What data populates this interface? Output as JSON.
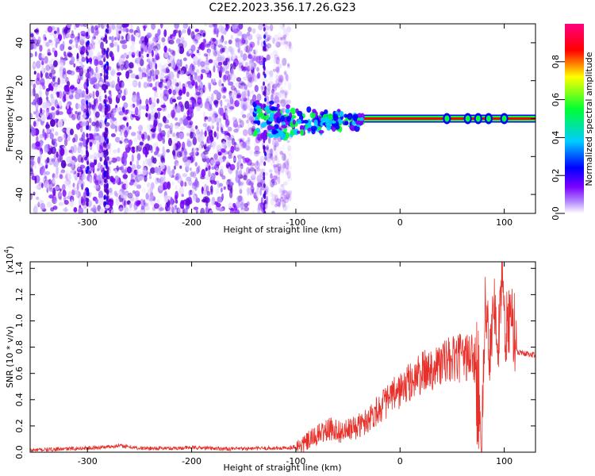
{
  "title": "C2E2.2023.356.17.26.G23",
  "chart_data": [
    {
      "type": "heatmap",
      "title": "C2E2.2023.356.17.26.G23",
      "xlabel": "Height of straight line (km)",
      "ylabel": "Frequency (Hz)",
      "xlim": [
        -355,
        130
      ],
      "ylim": [
        -50,
        50
      ],
      "x_ticks": [
        -300,
        -200,
        -100,
        0,
        100
      ],
      "y_ticks": [
        -40,
        -20,
        0,
        20,
        40
      ],
      "colorbar": {
        "label": "Normalized spectral amplitude",
        "range": [
          0.0,
          1.0
        ],
        "ticks": [
          0.0,
          0.2,
          0.4,
          0.6,
          0.8
        ],
        "tick_labels": [
          "0.0",
          "0.2",
          "0.4",
          "0.6",
          "0.8"
        ],
        "colors": [
          "#ffffff",
          "#7a00ff",
          "#0000ff",
          "#00ccff",
          "#00ff33",
          "#ffff00",
          "#ff0000",
          "#ff0080"
        ]
      },
      "features": {
        "noise_region_x": [
          -355,
          -105
        ],
        "signal_band_x": [
          -140,
          130
        ],
        "signal_frequency_hz": 0
      }
    },
    {
      "type": "line",
      "xlabel": "Height of straight line (km)",
      "ylabel": "SNR (10 * v/v)",
      "y_multiplier": "(x10",
      "y_multiplier_exp": "4",
      "y_multiplier_close": ")",
      "xlim": [
        -355,
        130
      ],
      "ylim": [
        0,
        14500
      ],
      "x_ticks": [
        -300,
        -200,
        -100,
        0,
        100
      ],
      "y_ticks": [
        0,
        2000,
        4000,
        6000,
        8000,
        10000,
        12000,
        14000
      ],
      "y_tick_labels": [
        "0.0",
        "0.2",
        "0.4",
        "0.6",
        "0.8",
        "1.0",
        "1.2",
        "1.4"
      ],
      "color": "#e8302a",
      "series": [
        {
          "x": [
            -355,
            -320,
            -290,
            -270,
            -250,
            -220,
            -200,
            -180,
            -160,
            -130,
            -110,
            -95,
            -85,
            -75,
            -65,
            -55,
            -45,
            -35,
            -25,
            -15,
            -5,
            5,
            15,
            25,
            35,
            45,
            55,
            65,
            70,
            75,
            78,
            82,
            86,
            90,
            94,
            98,
            102,
            106,
            110,
            115,
            120,
            130
          ],
          "values": [
            150,
            250,
            350,
            500,
            300,
            300,
            350,
            300,
            250,
            300,
            300,
            500,
            1000,
            1500,
            1800,
            1500,
            1800,
            2200,
            3000,
            3700,
            4400,
            5000,
            5700,
            6200,
            6600,
            6900,
            7100,
            7300,
            7400,
            7500,
            200,
            12000,
            7600,
            11500,
            8000,
            13500,
            8000,
            11800,
            7700,
            7600,
            7500,
            7400
          ]
        }
      ]
    }
  ],
  "icons": {}
}
